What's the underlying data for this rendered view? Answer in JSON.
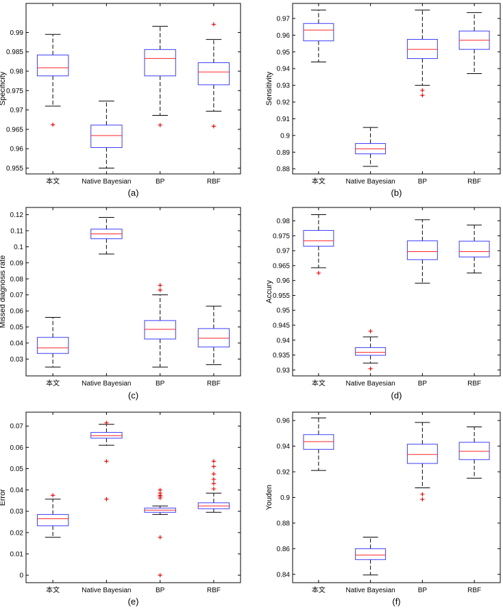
{
  "figure": {
    "colors": {
      "box": "#3b3bff",
      "median": "#ff2020",
      "outlier": "#ff0000",
      "whisker": "#000000",
      "frame": "#000000"
    }
  },
  "chart_data": [
    {
      "type": "box",
      "caption": "(a)",
      "ylabel": "Specificity",
      "categories": [
        "本文",
        "Native Bayesian",
        "BP",
        "RBF"
      ],
      "ylim": [
        0.9535,
        0.9975
      ],
      "yticks": [
        0.955,
        0.96,
        0.965,
        0.97,
        0.975,
        0.98,
        0.985,
        0.99
      ],
      "ytick_labels": [
        "0.955",
        "0.96",
        "0.965",
        "0.97",
        "0.975",
        "0.98",
        "0.985",
        "0.99"
      ],
      "boxes": [
        {
          "whisker_low": 0.971,
          "q1": 0.9788,
          "median": 0.9809,
          "q3": 0.9842,
          "whisker_high": 0.9895,
          "outliers": [
            0.9662
          ]
        },
        {
          "whisker_low": 0.955,
          "q1": 0.9603,
          "median": 0.9634,
          "q3": 0.9661,
          "whisker_high": 0.9723,
          "outliers": []
        },
        {
          "whisker_low": 0.9686,
          "q1": 0.9788,
          "median": 0.9833,
          "q3": 0.9856,
          "whisker_high": 0.9916,
          "outliers": [
            0.9661
          ]
        },
        {
          "whisker_low": 0.9697,
          "q1": 0.9765,
          "median": 0.9798,
          "q3": 0.9822,
          "whisker_high": 0.9882,
          "outliers": [
            0.9921,
            0.9658
          ]
        }
      ]
    },
    {
      "type": "box",
      "caption": "(b)",
      "ylabel": "Sensitivity",
      "categories": [
        "本文",
        "Native Bayesian",
        "BP",
        "RBF"
      ],
      "ylim": [
        0.877,
        0.979
      ],
      "yticks": [
        0.88,
        0.89,
        0.9,
        0.91,
        0.92,
        0.93,
        0.94,
        0.95,
        0.96,
        0.97
      ],
      "ytick_labels": [
        "0.88",
        "0.89",
        "0.9",
        "0.91",
        "0.92",
        "0.93",
        "0.94",
        "0.95",
        "0.96",
        "0.97"
      ],
      "boxes": [
        {
          "whisker_low": 0.944,
          "q1": 0.9566,
          "median": 0.963,
          "q3": 0.967,
          "whisker_high": 0.975,
          "outliers": []
        },
        {
          "whisker_low": 0.8815,
          "q1": 0.889,
          "median": 0.892,
          "q3": 0.8952,
          "whisker_high": 0.9048,
          "outliers": []
        },
        {
          "whisker_low": 0.93,
          "q1": 0.946,
          "median": 0.9515,
          "q3": 0.9575,
          "whisker_high": 0.975,
          "outliers": [
            0.927,
            0.924
          ]
        },
        {
          "whisker_low": 0.937,
          "q1": 0.9515,
          "median": 0.957,
          "q3": 0.9625,
          "whisker_high": 0.9735,
          "outliers": []
        }
      ]
    },
    {
      "type": "box",
      "caption": "(c)",
      "ylabel": "Missed diagnosis rate",
      "categories": [
        "本文",
        "Native Bayesian",
        "BP",
        "RBF"
      ],
      "ylim": [
        0.0195,
        0.1245
      ],
      "yticks": [
        0.03,
        0.04,
        0.05,
        0.06,
        0.07,
        0.08,
        0.09,
        0.1,
        0.11,
        0.12
      ],
      "ytick_labels": [
        "0.03",
        "0.04",
        "0.05",
        "0.06",
        "0.07",
        "0.08",
        "0.09",
        "0.1",
        "0.11",
        "0.12"
      ],
      "boxes": [
        {
          "whisker_low": 0.025,
          "q1": 0.0335,
          "median": 0.037,
          "q3": 0.0435,
          "whisker_high": 0.056,
          "outliers": []
        },
        {
          "whisker_low": 0.0955,
          "q1": 0.105,
          "median": 0.108,
          "q3": 0.111,
          "whisker_high": 0.1183,
          "outliers": []
        },
        {
          "whisker_low": 0.025,
          "q1": 0.0425,
          "median": 0.0485,
          "q3": 0.054,
          "whisker_high": 0.07,
          "outliers": [
            0.073,
            0.076
          ]
        },
        {
          "whisker_low": 0.0265,
          "q1": 0.0375,
          "median": 0.043,
          "q3": 0.049,
          "whisker_high": 0.063,
          "outliers": []
        }
      ]
    },
    {
      "type": "box",
      "caption": "(d)",
      "ylabel": "Accury",
      "categories": [
        "本文",
        "Native Bayesian",
        "BP",
        "RBF"
      ],
      "ylim": [
        0.928,
        0.9845
      ],
      "yticks": [
        0.93,
        0.935,
        0.94,
        0.945,
        0.95,
        0.955,
        0.96,
        0.965,
        0.97,
        0.975,
        0.98
      ],
      "ytick_labels": [
        "0.93",
        "0.935",
        "0.94",
        "0.945",
        "0.95",
        "0.955",
        "0.96",
        "0.965",
        "0.97",
        "0.975",
        "0.98"
      ],
      "boxes": [
        {
          "whisker_low": 0.9643,
          "q1": 0.9715,
          "median": 0.9733,
          "q3": 0.9768,
          "whisker_high": 0.9821,
          "outliers": [
            0.9625
          ]
        },
        {
          "whisker_low": 0.9323,
          "q1": 0.9349,
          "median": 0.9359,
          "q3": 0.9375,
          "whisker_high": 0.9411,
          "outliers": [
            0.943,
            0.9304
          ]
        },
        {
          "whisker_low": 0.9591,
          "q1": 0.967,
          "median": 0.9697,
          "q3": 0.9733,
          "whisker_high": 0.9804,
          "outliers": []
        },
        {
          "whisker_low": 0.9625,
          "q1": 0.9679,
          "median": 0.9697,
          "q3": 0.9732,
          "whisker_high": 0.9786,
          "outliers": []
        }
      ]
    },
    {
      "type": "box",
      "caption": "(e)",
      "ylabel": "Error",
      "categories": [
        "本文",
        "Native Bayesian",
        "BP",
        "RBF"
      ],
      "ylim": [
        -0.0035,
        0.0765
      ],
      "yticks": [
        0,
        0.01,
        0.02,
        0.03,
        0.04,
        0.05,
        0.06,
        0.07
      ],
      "ytick_labels": [
        "0",
        "0.01",
        "0.02",
        "0.03",
        "0.04",
        "0.05",
        "0.06",
        "0.07"
      ],
      "boxes": [
        {
          "whisker_low": 0.0178,
          "q1": 0.0232,
          "median": 0.0265,
          "q3": 0.0285,
          "whisker_high": 0.0357,
          "outliers": [
            0.0375
          ]
        },
        {
          "whisker_low": 0.061,
          "q1": 0.0643,
          "median": 0.0655,
          "q3": 0.067,
          "whisker_high": 0.0708,
          "outliers": [
            0.0715,
            0.0535,
            0.0357
          ]
        },
        {
          "whisker_low": 0.0285,
          "q1": 0.0295,
          "median": 0.0305,
          "q3": 0.0315,
          "whisker_high": 0.0325,
          "outliers": [
            0.04,
            0.0385,
            0.0375,
            0.037,
            0.0362,
            0.0178,
            0
          ]
        },
        {
          "whisker_low": 0.0295,
          "q1": 0.0312,
          "median": 0.0325,
          "q3": 0.034,
          "whisker_high": 0.0385,
          "outliers": [
            0.0535,
            0.051,
            0.0475,
            0.045,
            0.043,
            0.0405
          ]
        }
      ]
    },
    {
      "type": "box",
      "caption": "(f)",
      "ylabel": "Youden",
      "categories": [
        "本文",
        "Native Bayesian",
        "BP",
        "RBF"
      ],
      "ylim": [
        0.8335,
        0.9665
      ],
      "yticks": [
        0.84,
        0.86,
        0.88,
        0.9,
        0.92,
        0.94,
        0.96
      ],
      "ytick_labels": [
        "0.84",
        "0.86",
        "0.88",
        "0.9",
        "0.92",
        "0.94",
        "0.96"
      ],
      "boxes": [
        {
          "whisker_low": 0.921,
          "q1": 0.9375,
          "median": 0.9435,
          "q3": 0.949,
          "whisker_high": 0.962,
          "outliers": []
        },
        {
          "whisker_low": 0.8395,
          "q1": 0.8515,
          "median": 0.855,
          "q3": 0.86,
          "whisker_high": 0.869,
          "outliers": []
        },
        {
          "whisker_low": 0.9075,
          "q1": 0.9265,
          "median": 0.9335,
          "q3": 0.9415,
          "whisker_high": 0.9585,
          "outliers": [
            0.9025,
            0.8985
          ]
        },
        {
          "whisker_low": 0.915,
          "q1": 0.9295,
          "median": 0.936,
          "q3": 0.943,
          "whisker_high": 0.955,
          "outliers": []
        }
      ]
    }
  ]
}
